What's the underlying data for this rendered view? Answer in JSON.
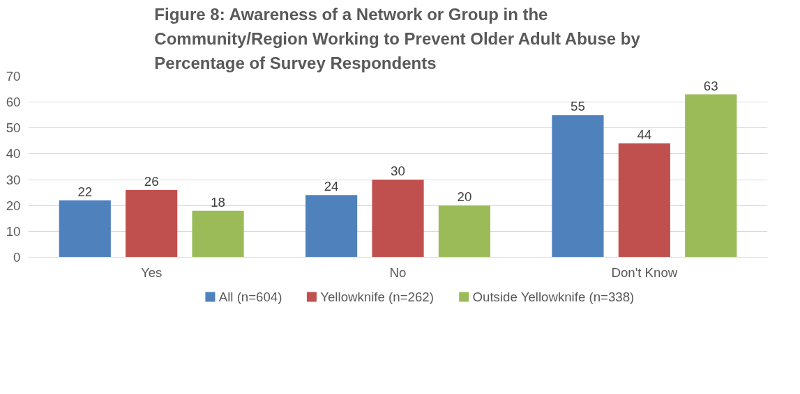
{
  "chart_data": {
    "type": "bar",
    "title": "Figure 8: Awareness of a Network or Group in the Community/Region Working to Prevent Older Adult Abuse by Percentage of Survey Respondents",
    "categories": [
      "Yes",
      "No",
      "Don't Know"
    ],
    "series": [
      {
        "name": "All (n=604)",
        "color": "#4f81bd",
        "values": [
          22,
          24,
          55
        ]
      },
      {
        "name": "Yellowknife (n=262)",
        "color": "#c0504d",
        "values": [
          26,
          30,
          44
        ]
      },
      {
        "name": "Outside Yellowknife (n=338)",
        "color": "#9bbb59",
        "values": [
          18,
          20,
          63
        ]
      }
    ],
    "ylim": [
      0,
      70
    ],
    "yticks": [
      0,
      10,
      20,
      30,
      40,
      50,
      60,
      70
    ],
    "grid": "y",
    "legend": "bottom",
    "data_labels": true
  }
}
